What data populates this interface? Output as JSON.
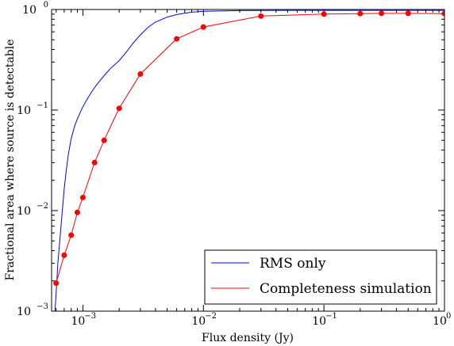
{
  "chart_data": {
    "type": "line",
    "xlabel": "Flux density (Jy)",
    "ylabel": "Fractional area where source is detectable",
    "xscale": "log",
    "yscale": "log",
    "xlim": [
      0.00055,
      1.0
    ],
    "ylim": [
      0.001,
      1.0
    ],
    "x_ticks": [
      {
        "value": 0.001,
        "base": "10",
        "exp": "−3"
      },
      {
        "value": 0.01,
        "base": "10",
        "exp": "−2"
      },
      {
        "value": 0.1,
        "base": "10",
        "exp": "−1"
      },
      {
        "value": 1.0,
        "base": "10",
        "exp": "0"
      }
    ],
    "y_ticks": [
      {
        "value": 0.001,
        "base": "10",
        "exp": "−3"
      },
      {
        "value": 0.01,
        "base": "10",
        "exp": "−2"
      },
      {
        "value": 0.1,
        "base": "10",
        "exp": "−1"
      },
      {
        "value": 1.0,
        "base": "10",
        "exp": "0"
      }
    ],
    "legend_position": "lower-right",
    "series": [
      {
        "name": "RMS only",
        "color": "#0000ff",
        "marker": "none",
        "x": [
          0.00058,
          0.0006,
          0.00062,
          0.00065,
          0.00068,
          0.0007,
          0.00073,
          0.00076,
          0.0008,
          0.00085,
          0.0009,
          0.001,
          0.0011,
          0.0012,
          0.0013,
          0.0015,
          0.0017,
          0.002,
          0.0023,
          0.0026,
          0.003,
          0.0035,
          0.004,
          0.005,
          0.006,
          0.007,
          0.008,
          0.01,
          0.015,
          0.02,
          0.03,
          0.05,
          0.1,
          0.2,
          0.5,
          1.0
        ],
        "y": [
          0.0008,
          0.0015,
          0.003,
          0.0058,
          0.011,
          0.0165,
          0.026,
          0.037,
          0.052,
          0.068,
          0.082,
          0.108,
          0.132,
          0.156,
          0.178,
          0.22,
          0.26,
          0.31,
          0.38,
          0.46,
          0.56,
          0.67,
          0.75,
          0.84,
          0.89,
          0.92,
          0.94,
          0.96,
          0.97,
          0.975,
          0.978,
          0.98,
          0.98,
          0.98,
          0.98,
          0.98
        ]
      },
      {
        "name": "Completeness simulation",
        "color": "#ff0000",
        "marker": "circle",
        "x": [
          0.0006,
          0.0007,
          0.0008,
          0.0009,
          0.001,
          0.00125,
          0.0015,
          0.002,
          0.003,
          0.006,
          0.01,
          0.03,
          0.1,
          0.2,
          0.3,
          0.5,
          1.0
        ],
        "y": [
          0.0019,
          0.0036,
          0.0057,
          0.0096,
          0.0135,
          0.03,
          0.05,
          0.104,
          0.228,
          0.51,
          0.67,
          0.86,
          0.9,
          0.91,
          0.915,
          0.915,
          0.91
        ]
      }
    ]
  }
}
